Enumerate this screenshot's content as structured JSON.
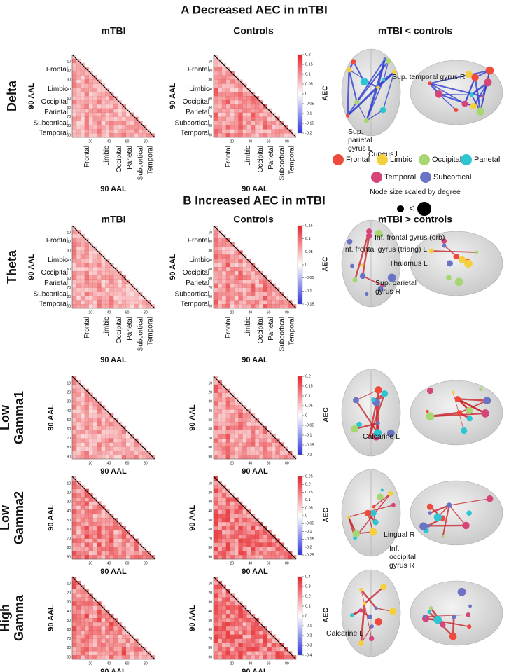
{
  "sections": [
    {
      "title": "A Decreased AEC in mTBI",
      "col_titles": [
        "mTBI",
        "Controls",
        "mTBI < controls"
      ]
    },
    {
      "title": "B Increased AEC in mTBI",
      "col_titles": [
        "mTBI",
        "Controls",
        "mTBI > controls"
      ]
    }
  ],
  "regions": [
    "Frontal",
    "Limbic",
    "Occipital",
    "Parietal",
    "Subcortical",
    "Temporal"
  ],
  "axis_label": "90 AAL",
  "colorbar_label": "AEC",
  "yticks": [
    10,
    20,
    30,
    40,
    50,
    60,
    70,
    80,
    90
  ],
  "xticks": [
    20,
    40,
    60,
    80
  ],
  "rows": [
    {
      "band": [
        "Delta"
      ],
      "colorbar_ticks": [
        0.2,
        0.15,
        0.1,
        0.05,
        0,
        -0.05,
        -0.1,
        -0.15,
        -0.2
      ],
      "brain_labels": [
        [
          "Sup. temporal gyrus R"
        ],
        [
          "Sup.",
          "parietal",
          "gyrus L"
        ],
        [
          "Cuneus L"
        ]
      ]
    },
    {
      "band": [
        "Theta"
      ],
      "colorbar_ticks": [
        0.15,
        0.1,
        0.05,
        0,
        -0.05,
        -0.1,
        -0.15
      ],
      "brain_labels": [
        [
          "Inf. frontal gyrus (orb)"
        ],
        [
          "Inf. frontal gyrus (triang) L"
        ],
        [
          "Thalamus L"
        ],
        [
          "Sup. parietal",
          "gyrus R"
        ]
      ]
    },
    {
      "band": [
        "Low",
        "Gamma1"
      ],
      "colorbar_ticks": [
        0.2,
        0.15,
        0.1,
        0.05,
        0,
        -0.05,
        -0.1,
        -0.15,
        -0.2
      ],
      "brain_labels": [
        [
          "Calcarine L"
        ]
      ]
    },
    {
      "band": [
        "Low",
        "Gamma2"
      ],
      "colorbar_ticks": [
        0.25,
        0.2,
        0.15,
        0.1,
        0.05,
        0,
        -0.05,
        -0.1,
        -0.15,
        -0.2,
        -0.25
      ],
      "brain_labels": [
        [
          "Lingual R"
        ],
        [
          "Inf.",
          "occipital",
          "gyrus R"
        ]
      ]
    },
    {
      "band": [
        "High",
        "Gamma"
      ],
      "colorbar_ticks": [
        0.4,
        0.3,
        0.2,
        0.1,
        0,
        -0.1,
        -0.2,
        -0.3,
        -0.4
      ],
      "brain_labels": [
        [
          "Calcarine L"
        ]
      ]
    }
  ],
  "legend": [
    {
      "name": "Frontal",
      "color": "#ef4a3c"
    },
    {
      "name": "Limbic",
      "color": "#f4d03f"
    },
    {
      "name": "Occipital",
      "color": "#a8d672"
    },
    {
      "name": "Parietal",
      "color": "#2ec5d3"
    },
    {
      "name": "Temporal",
      "color": "#d6457a"
    },
    {
      "name": "Subcortical",
      "color": "#6b74c4"
    }
  ],
  "legend_note": "Node size scaled by degree",
  "size_compare": "<"
}
